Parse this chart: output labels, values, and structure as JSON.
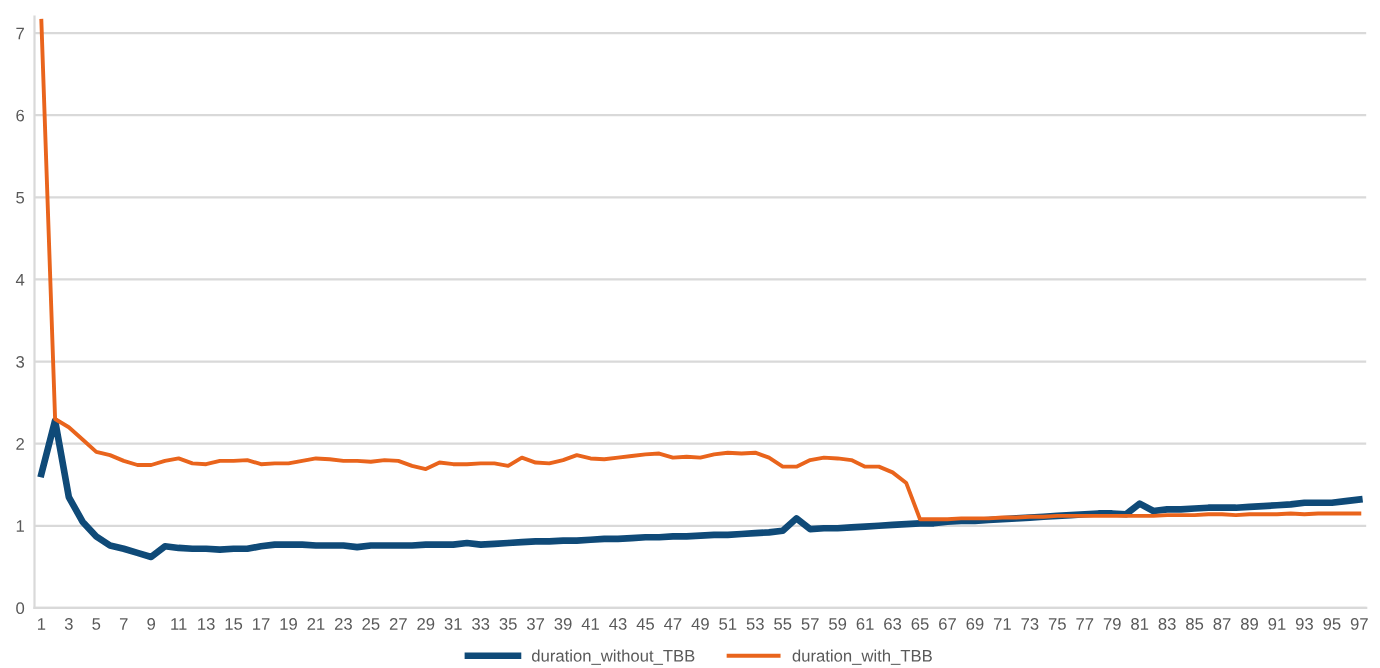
{
  "chart_data": {
    "type": "line",
    "categories": [
      "1",
      null,
      "3",
      null,
      "5",
      null,
      "7",
      null,
      "9",
      null,
      "11",
      null,
      "13",
      null,
      "15",
      null,
      "17",
      null,
      "19",
      null,
      "21",
      null,
      "23",
      null,
      "25",
      null,
      "27",
      null,
      "29",
      null,
      "31",
      null,
      "33",
      null,
      "35",
      null,
      "37",
      null,
      "39",
      null,
      "41",
      null,
      "43",
      null,
      "45",
      null,
      "47",
      null,
      "49",
      null,
      "51",
      null,
      "53",
      null,
      "55",
      null,
      "57",
      null,
      "59",
      null,
      "61",
      null,
      "63",
      null,
      "65",
      null,
      "67",
      null,
      "69",
      null,
      "71",
      null,
      "73",
      null,
      "75",
      null,
      "77",
      null,
      "79",
      null,
      "81",
      null,
      "83",
      null,
      "85",
      null,
      "87",
      null,
      "89",
      null,
      "91",
      null,
      "93",
      null,
      "95",
      null,
      "97"
    ],
    "series": [
      {
        "name": "duration_without_TBB",
        "color": "#0f4a78",
        "values": [
          1.63,
          2.28,
          1.35,
          1.05,
          0.87,
          0.76,
          0.72,
          0.67,
          0.62,
          0.75,
          0.73,
          0.72,
          0.72,
          0.71,
          0.72,
          0.72,
          0.75,
          0.77,
          0.77,
          0.77,
          0.76,
          0.76,
          0.76,
          0.74,
          0.76,
          0.76,
          0.76,
          0.76,
          0.77,
          0.77,
          0.77,
          0.79,
          0.77,
          0.78,
          0.79,
          0.8,
          0.81,
          0.81,
          0.82,
          0.82,
          0.83,
          0.84,
          0.84,
          0.85,
          0.86,
          0.86,
          0.87,
          0.87,
          0.88,
          0.89,
          0.89,
          0.9,
          0.91,
          0.92,
          0.94,
          1.09,
          0.96,
          0.97,
          0.97,
          0.98,
          0.99,
          1.0,
          1.01,
          1.02,
          1.03,
          1.03,
          1.05,
          1.06,
          1.06,
          1.07,
          1.08,
          1.09,
          1.1,
          1.11,
          1.12,
          1.13,
          1.14,
          1.15,
          1.15,
          1.14,
          1.27,
          1.18,
          1.2,
          1.2,
          1.21,
          1.22,
          1.22,
          1.22,
          1.23,
          1.24,
          1.25,
          1.26,
          1.28,
          1.28,
          1.28,
          1.3,
          1.32
        ]
      },
      {
        "name": "duration_with_TBB",
        "color": "#e9641c",
        "values": [
          7.15,
          2.3,
          2.2,
          2.05,
          1.9,
          1.86,
          1.79,
          1.74,
          1.74,
          1.79,
          1.82,
          1.76,
          1.75,
          1.79,
          1.79,
          1.8,
          1.75,
          1.76,
          1.76,
          1.79,
          1.82,
          1.81,
          1.79,
          1.79,
          1.78,
          1.8,
          1.79,
          1.73,
          1.69,
          1.77,
          1.75,
          1.75,
          1.76,
          1.76,
          1.73,
          1.83,
          1.77,
          1.76,
          1.8,
          1.86,
          1.82,
          1.81,
          1.83,
          1.85,
          1.87,
          1.88,
          1.83,
          1.84,
          1.83,
          1.87,
          1.89,
          1.88,
          1.89,
          1.83,
          1.72,
          1.72,
          1.8,
          1.83,
          1.82,
          1.8,
          1.72,
          1.72,
          1.65,
          1.52,
          1.08,
          1.08,
          1.08,
          1.09,
          1.09,
          1.09,
          1.1,
          1.1,
          1.11,
          1.11,
          1.12,
          1.12,
          1.12,
          1.12,
          1.12,
          1.12,
          1.12,
          1.12,
          1.13,
          1.13,
          1.13,
          1.14,
          1.14,
          1.13,
          1.14,
          1.14,
          1.14,
          1.15,
          1.14,
          1.15,
          1.15,
          1.15,
          1.15
        ]
      }
    ],
    "ylim": [
      0,
      7.2
    ],
    "yticks": [
      0,
      1,
      2,
      3,
      4,
      5,
      6,
      7
    ],
    "grid": "y",
    "legend": "bottom",
    "marker": "none",
    "line_style": "solid"
  }
}
